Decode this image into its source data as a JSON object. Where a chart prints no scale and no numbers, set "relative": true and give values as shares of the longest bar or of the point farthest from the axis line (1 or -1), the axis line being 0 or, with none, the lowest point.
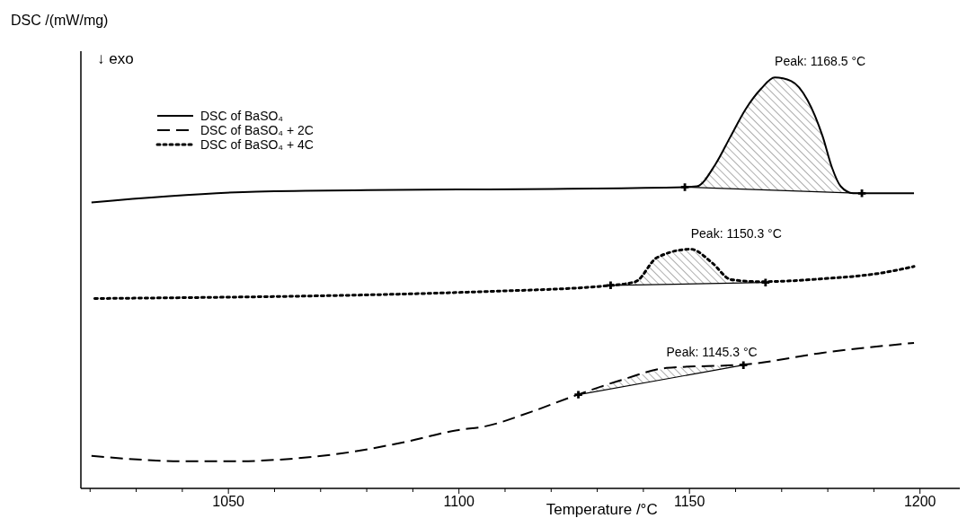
{
  "chart_data": {
    "type": "line",
    "relative": true,
    "xlabel": "Temperature /°C",
    "ylabel": "DSC /(mW/mg)",
    "xlim": [
      1018,
      1210
    ],
    "xticks": [
      {
        "value": 1020,
        "label": null
      },
      {
        "value": 1030,
        "label": null
      },
      {
        "value": 1040,
        "label": null
      },
      1050,
      {
        "value": 1060,
        "label": null
      },
      {
        "value": 1070,
        "label": null
      },
      {
        "value": 1080,
        "label": null
      },
      {
        "value": 1090,
        "label": null
      },
      1100,
      {
        "value": 1110,
        "label": null
      },
      {
        "value": 1120,
        "label": null
      },
      {
        "value": 1130,
        "label": null
      },
      {
        "value": 1140,
        "label": null
      },
      1150,
      {
        "value": 1160,
        "label": null
      },
      {
        "value": 1170,
        "label": null
      },
      {
        "value": 1180,
        "label": null
      },
      {
        "value": 1190,
        "label": null
      },
      1200
    ],
    "legend": "top left",
    "grid": false,
    "annotations": [
      "↓ exo",
      {
        "text": "Peak: 1168.5 °C",
        "x": 1168.5,
        "y": 1.0
      },
      {
        "text": "Peak: 1150.3 °C",
        "x": 1150.3,
        "y": 0.582
      },
      {
        "text": "Peak: 1145.3 °C",
        "x": 1145,
        "y": 0.293
      }
    ],
    "series": [
      {
        "name": "DSC of BaSO₄",
        "color": "#000000",
        "line_style": "solid",
        "x": [
          1020.3,
          1056,
          1149,
          1151.6,
          1155.6,
          1158.9,
          1162.2,
          1165.5,
          1168.5,
          1172.1,
          1175.6,
          1178.9,
          1180.9,
          1182.8,
          1185.5,
          1198.7
        ],
        "values": [
          0.696,
          0.722,
          0.733,
          0.735,
          0.788,
          0.856,
          0.923,
          0.972,
          1.0,
          0.991,
          0.945,
          0.856,
          0.781,
          0.735,
          0.718,
          0.718
        ]
      },
      {
        "name": "DSC of BaSO₄ + 2C",
        "color": "#000000",
        "line_style": "dashed",
        "x": [
          1020.3,
          1041.1,
          1052.3,
          1061,
          1074.5,
          1087.9,
          1099.9,
          1105.7,
          1115.6,
          1125,
          1135.6,
          1145,
          1162.5,
          1178.9,
          1198.7
        ],
        "values": [
          0.079,
          0.066,
          0.066,
          0.07,
          0.085,
          0.112,
          0.142,
          0.151,
          0.186,
          0.225,
          0.265,
          0.293,
          0.302,
          0.33,
          0.354
        ]
      },
      {
        "name": "DSC of BaSO₄ + 4C",
        "color": "#000000",
        "line_style": "dotted",
        "x": [
          1021,
          1105.7,
          1132.9,
          1138.3,
          1143,
          1150.3,
          1154.9,
          1159,
          1165.5,
          1178.9,
          1192.1,
          1198.7
        ],
        "values": [
          0.462,
          0.479,
          0.494,
          0.503,
          0.562,
          0.582,
          0.549,
          0.508,
          0.503,
          0.51,
          0.525,
          0.54
        ]
      },
      {
        "type": "line",
        "color": "#000000",
        "line_style": "solid",
        "marker": "cross",
        "x": [
          1149,
          1187.4
        ],
        "values": [
          0.733,
          0.718
        ]
      },
      {
        "type": "line",
        "color": "#000000",
        "line_style": "solid",
        "marker": "cross",
        "x": [
          1125.9,
          1161.7
        ],
        "values": [
          0.228,
          0.3
        ]
      },
      {
        "type": "line",
        "color": "#000000",
        "line_style": "solid",
        "marker": "cross",
        "x": [
          1132.9,
          1166.5
        ],
        "values": [
          0.494,
          0.501
        ]
      }
    ]
  }
}
